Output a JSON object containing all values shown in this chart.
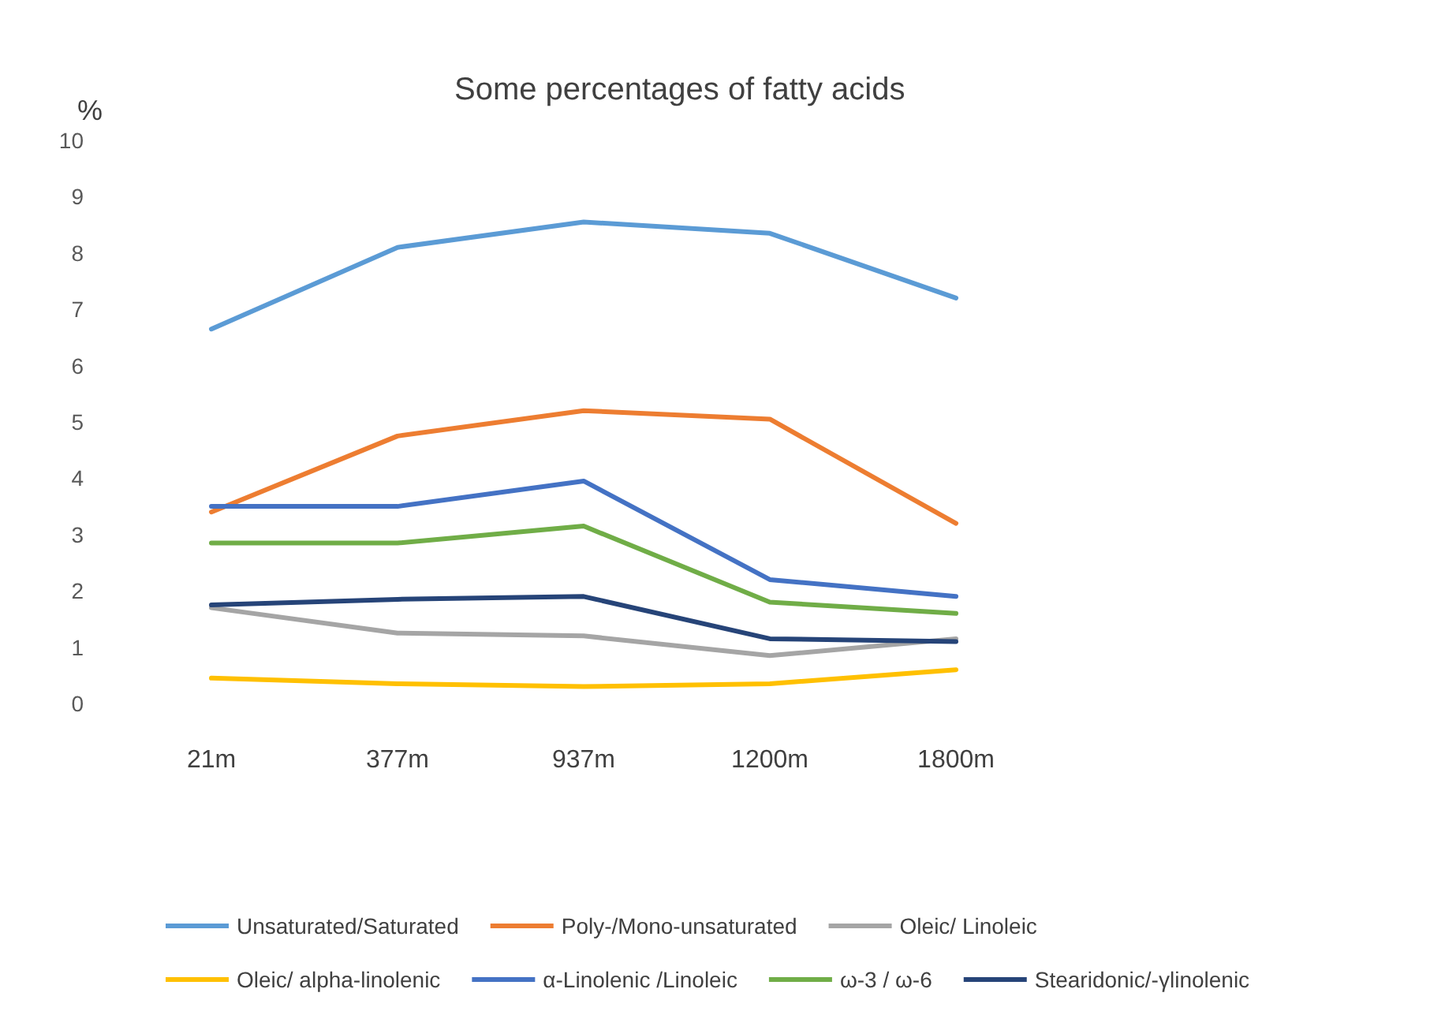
{
  "chart_data": {
    "type": "line",
    "title": "Some percentages of fatty acids",
    "ylabel": "%",
    "categories": [
      "21m",
      "377m",
      "937m",
      "1200m",
      "1800m"
    ],
    "series": [
      {
        "name": "Unsaturated/Saturated",
        "color": "#5b9bd5",
        "values": [
          6.65,
          8.1,
          8.55,
          8.35,
          7.2
        ]
      },
      {
        "name": "Poly-/Mono-unsaturated",
        "color": "#ed7d31",
        "values": [
          3.4,
          4.75,
          5.2,
          5.05,
          3.2
        ]
      },
      {
        "name": "Oleic/ Linoleic",
        "color": "#a5a5a5",
        "values": [
          1.7,
          1.25,
          1.2,
          0.85,
          1.15
        ]
      },
      {
        "name": "Oleic/ alpha-linolenic",
        "color": "#ffc000",
        "values": [
          0.45,
          0.35,
          0.3,
          0.35,
          0.6
        ]
      },
      {
        "name": "α-Linolenic /Linoleic",
        "color": "#4472c4",
        "values": [
          3.5,
          3.5,
          3.95,
          2.2,
          1.9
        ]
      },
      {
        "name": "ω-3 / ω-6",
        "color": "#70ad47",
        "values": [
          2.85,
          2.85,
          3.15,
          1.8,
          1.6
        ]
      },
      {
        "name": "Stearidonic/-γlinolenic",
        "color": "#264478",
        "values": [
          1.75,
          1.85,
          1.9,
          1.15,
          1.1
        ]
      }
    ],
    "ylim": [
      0,
      10
    ],
    "yticks": [
      0,
      1,
      2,
      3,
      4,
      5,
      6,
      7,
      8,
      9,
      10
    ],
    "grid": false,
    "legend": "bottom",
    "marker": "none",
    "line_style": "solid"
  }
}
